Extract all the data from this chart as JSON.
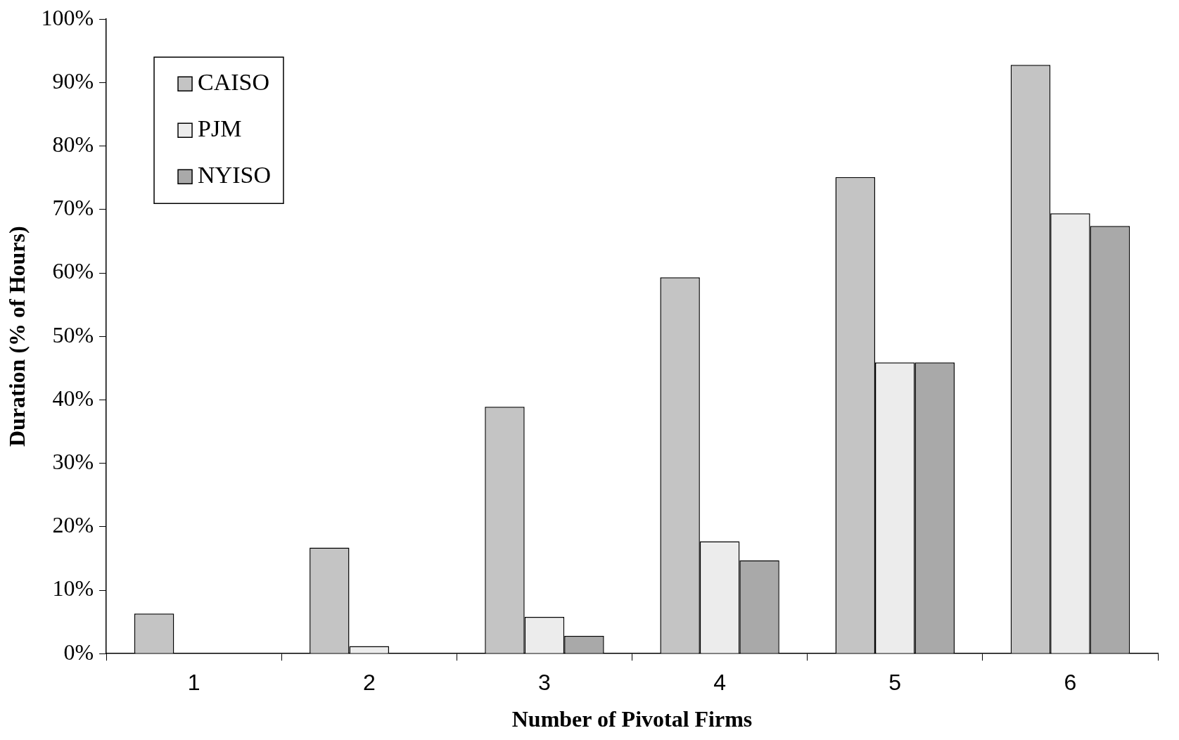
{
  "chart_data": {
    "type": "bar",
    "xlabel": "Number of Pivotal Firms",
    "ylabel": "Duration (% of Hours)",
    "categories": [
      "1",
      "2",
      "3",
      "4",
      "5",
      "6"
    ],
    "series": [
      {
        "name": "CAISO",
        "color": "#c4c4c4",
        "values": [
          6.3,
          16.7,
          38.9,
          59.3,
          75.1,
          92.8
        ]
      },
      {
        "name": "PJM",
        "color": "#ececec",
        "values": [
          0,
          1.2,
          5.8,
          17.7,
          45.9,
          69.4
        ]
      },
      {
        "name": "NYISO",
        "color": "#a9a9a9",
        "values": [
          0,
          0,
          2.8,
          14.7,
          45.9,
          67.4
        ]
      }
    ],
    "ylim": [
      0,
      100
    ],
    "yticks": [
      {
        "value": 0,
        "label": "0%"
      },
      {
        "value": 10,
        "label": "10%"
      },
      {
        "value": 20,
        "label": "20%"
      },
      {
        "value": 30,
        "label": "30%"
      },
      {
        "value": 40,
        "label": "40%"
      },
      {
        "value": 50,
        "label": "50%"
      },
      {
        "value": 60,
        "label": "60%"
      },
      {
        "value": 70,
        "label": "70%"
      },
      {
        "value": 80,
        "label": "80%"
      },
      {
        "value": 90,
        "label": "90%"
      },
      {
        "value": 100,
        "label": "100%"
      }
    ],
    "legend": "top left"
  }
}
